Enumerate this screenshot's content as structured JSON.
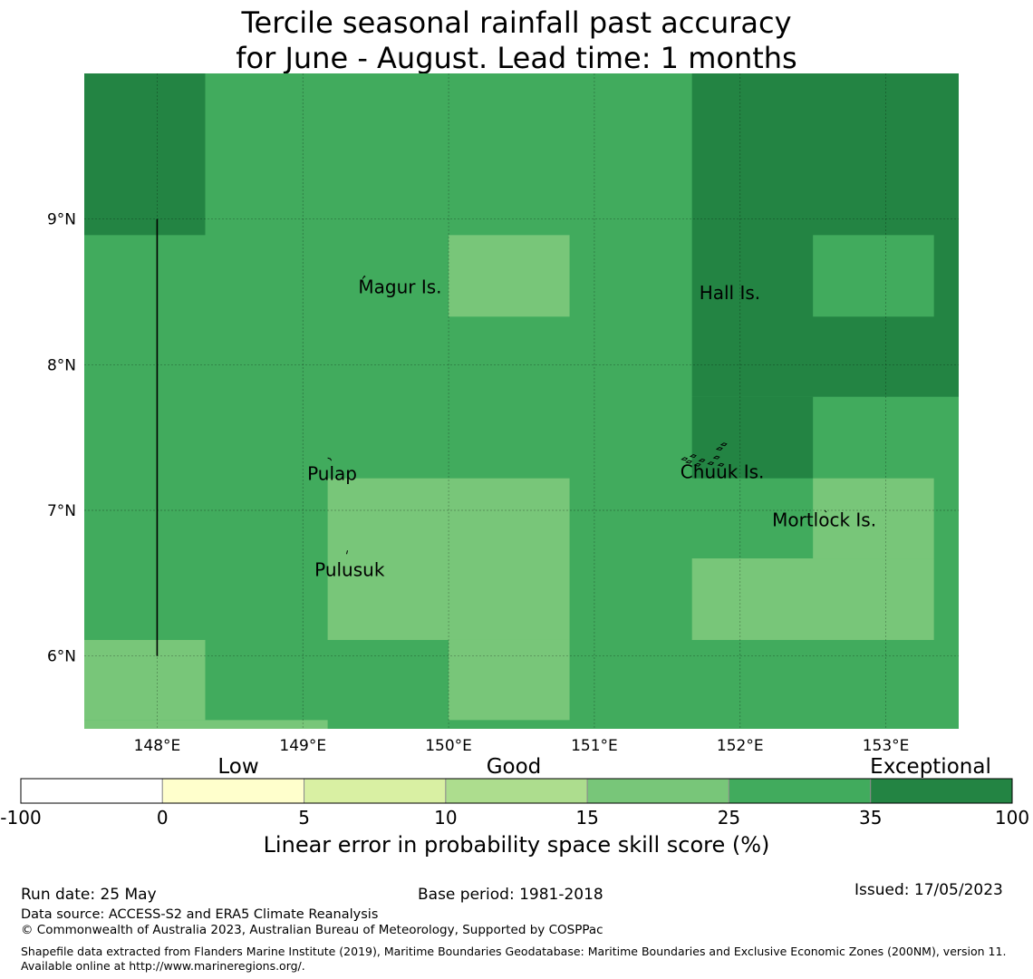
{
  "title": {
    "line1": "Tercile seasonal rainfall past accuracy",
    "line2": "for June - August. Lead time: 1 months"
  },
  "map": {
    "lon_range": [
      147.5,
      153.5
    ],
    "lat_range": [
      5.5,
      10.0
    ],
    "lon_ticks": [
      {
        "value": 148,
        "label": "148°E"
      },
      {
        "value": 149,
        "label": "149°E"
      },
      {
        "value": 150,
        "label": "150°E"
      },
      {
        "value": 151,
        "label": "151°E"
      },
      {
        "value": 152,
        "label": "152°E"
      },
      {
        "value": 153,
        "label": "153°E"
      }
    ],
    "lat_ticks": [
      {
        "value": 9,
        "label": "9°N"
      },
      {
        "value": 8,
        "label": "8°N"
      },
      {
        "value": 7,
        "label": "7°N"
      },
      {
        "value": 6,
        "label": "6°N"
      }
    ],
    "colors": {
      "25-35": "#41ab5d",
      "35-100": "#238443",
      "15-25": "#78c679"
    },
    "cells": [
      {
        "lon0": 147.5,
        "lon1": 148.33,
        "lat0": 8.89,
        "lat1": 10.0,
        "cat": "35-100"
      },
      {
        "lon0": 151.67,
        "lon1": 153.5,
        "lat0": 7.78,
        "lat1": 10.0,
        "cat": "35-100"
      },
      {
        "lon0": 151.67,
        "lon1": 152.5,
        "lat0": 7.22,
        "lat1": 7.78,
        "cat": "35-100"
      },
      {
        "lon0": 152.5,
        "lon1": 153.33,
        "lat0": 8.33,
        "lat1": 8.89,
        "cat": "25-35"
      },
      {
        "lon0": 150.0,
        "lon1": 150.83,
        "lat0": 8.33,
        "lat1": 8.89,
        "cat": "15-25"
      },
      {
        "lon0": 149.17,
        "lon1": 150.83,
        "lat0": 6.11,
        "lat1": 7.22,
        "cat": "15-25"
      },
      {
        "lon0": 150.0,
        "lon1": 150.83,
        "lat0": 5.56,
        "lat1": 6.11,
        "cat": "15-25"
      },
      {
        "lon0": 152.5,
        "lon1": 153.33,
        "lat0": 6.67,
        "lat1": 7.22,
        "cat": "15-25"
      },
      {
        "lon0": 151.67,
        "lon1": 153.33,
        "lat0": 6.11,
        "lat1": 6.67,
        "cat": "15-25"
      },
      {
        "lon0": 147.5,
        "lon1": 148.33,
        "lat0": 5.56,
        "lat1": 6.11,
        "cat": "15-25"
      },
      {
        "lon0": 147.5,
        "lon1": 149.17,
        "lat0": 5.5,
        "lat1": 5.56,
        "cat": "15-25"
      }
    ],
    "places": [
      {
        "name": "Magur Is.",
        "lon": 149.38,
        "lat": 8.49
      },
      {
        "name": "Hall Is.",
        "lon": 151.72,
        "lat": 8.45
      },
      {
        "name": "Pulap",
        "lon": 149.03,
        "lat": 7.21
      },
      {
        "name": "Chuuk Is.",
        "lon": 151.59,
        "lat": 7.22
      },
      {
        "name": "Mortlock Is.",
        "lon": 152.22,
        "lat": 6.89
      },
      {
        "name": "Pulusuk",
        "lon": 149.08,
        "lat": 6.55
      }
    ]
  },
  "legend": {
    "category_labels": [
      "Low",
      "Good",
      "Exceptional"
    ],
    "tick_labels": [
      "-100",
      "0",
      "5",
      "10",
      "15",
      "25",
      "35",
      "100"
    ],
    "colors": [
      "#ffffff",
      "#ffffcc",
      "#d9f0a3",
      "#addd8e",
      "#78c679",
      "#41ab5d",
      "#238443"
    ],
    "axis_label": "Linear error in probability space skill score (%)"
  },
  "footer": {
    "run_date": "Run date: 25 May",
    "base_period": "Base period: 1981-2018",
    "issued": "Issued: 17/05/2023",
    "data_source": "Data source: ACCESS-S2 and ERA5 Climate Reanalysis",
    "copyright": "© Commonwealth of Australia 2023, Australian Bureau of Meteorology, Supported by COSPPac",
    "shapefile": "Shapefile data extracted from Flanders Marine Institute (2019), Maritime Boundaries Geodatabase: Maritime Boundaries and Exclusive Economic Zones (200NM), version 11. Available online at http://www.marineregions.org/."
  }
}
